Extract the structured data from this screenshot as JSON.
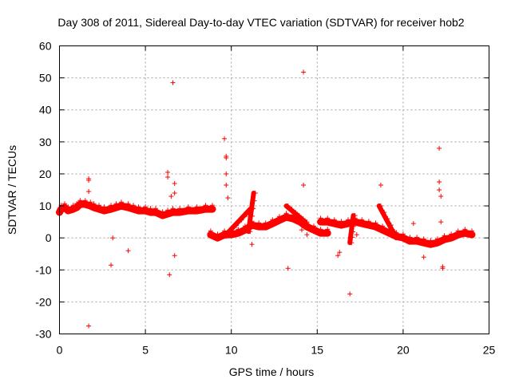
{
  "chart_data": {
    "type": "scatter",
    "title": "Day 308 of 2011, Sidereal Day-to-day VTEC variation (SDTVAR) for receiver hob2",
    "xlabel": "GPS time / hours",
    "ylabel": "SDTVAR / TECUs",
    "xlim": [
      0,
      25
    ],
    "ylim": [
      -30,
      60
    ],
    "xticks": [
      0,
      5,
      10,
      15,
      20,
      25
    ],
    "yticks": [
      -30,
      -20,
      -10,
      0,
      10,
      20,
      30,
      40,
      50,
      60
    ],
    "grid": true,
    "marker": "+",
    "color": "#ff0000",
    "dense_series": [
      {
        "name": "segment-1",
        "x": [
          0.0,
          0.1,
          0.3,
          0.5,
          0.8,
          1.0,
          1.2,
          1.5,
          1.8,
          2.0,
          2.3,
          2.6,
          3.0,
          3.3,
          3.6,
          4.0,
          4.3,
          4.6,
          5.0,
          5.3,
          5.6,
          6.0,
          6.3,
          6.6,
          7.0,
          7.5,
          8.0,
          8.5,
          8.9
        ],
        "y": [
          8,
          9,
          9.5,
          8.5,
          9,
          9.5,
          10.5,
          10.5,
          10,
          9.5,
          9,
          8.5,
          9,
          9.5,
          10,
          9.5,
          9,
          8.5,
          8.5,
          8,
          8,
          7,
          7.5,
          8,
          8,
          8.5,
          8.5,
          9,
          9
        ]
      },
      {
        "name": "segment-2",
        "x": [
          8.8,
          9.2,
          9.6,
          10.0,
          10.4,
          10.8,
          11.2,
          11.6,
          12.0,
          12.4,
          12.8,
          13.2,
          13.6,
          14.0,
          14.4,
          14.8,
          15.2,
          15.6
        ],
        "y": [
          1,
          0,
          1,
          1,
          1.5,
          2.5,
          4,
          3.5,
          3.5,
          4.5,
          5.5,
          6.5,
          6,
          5,
          3.5,
          2.5,
          1.5,
          1.5
        ]
      },
      {
        "name": "segment-3",
        "x": [
          15.2,
          15.6,
          16.0,
          16.4,
          16.8,
          17.2,
          17.6,
          18.0,
          18.4,
          18.8,
          19.2,
          19.6,
          20.0,
          20.4,
          20.8,
          21.2,
          21.6,
          22.0,
          22.4,
          22.8,
          23.2,
          23.6,
          24.0
        ],
        "y": [
          5,
          5,
          4.5,
          4,
          4.5,
          5,
          4.5,
          4,
          3.5,
          2.5,
          1.5,
          0.5,
          0,
          -1,
          -1,
          -1.5,
          -2,
          -1.5,
          -0.5,
          0,
          1,
          1.5,
          1
        ]
      }
    ],
    "rising_bands": [
      {
        "x": [
          9.6,
          11.1
        ],
        "y": [
          0.5,
          9
        ]
      },
      {
        "x": [
          11.0,
          11.3
        ],
        "y": [
          2,
          14
        ]
      },
      {
        "x": [
          13.2,
          14.3
        ],
        "y": [
          10,
          5
        ]
      },
      {
        "x": [
          18.6,
          19.6
        ],
        "y": [
          10,
          0
        ]
      },
      {
        "x": [
          16.9,
          17.1
        ],
        "y": [
          -1.5,
          7
        ]
      }
    ],
    "outliers": {
      "x": [
        1.7,
        1.7,
        1.7,
        1.7,
        3.0,
        3.1,
        4.0,
        6.3,
        6.3,
        6.4,
        6.6,
        6.7,
        6.7,
        6.7,
        6.5,
        9.6,
        9.7,
        9.7,
        9.7,
        9.8,
        9.7,
        11.2,
        13.3,
        14.2,
        14.2,
        14.1,
        14.4,
        16.2,
        16.3,
        16.9,
        17.3,
        18.7,
        20.6,
        21.2,
        22.1,
        22.1,
        22.1,
        22.2,
        22.3,
        22.3,
        22.2
      ],
      "y": [
        -27.5,
        18.5,
        18.0,
        14.5,
        -8.5,
        0.0,
        -4.0,
        20.5,
        19.0,
        -11.5,
        48.5,
        17.0,
        14.0,
        -5.5,
        13.0,
        31.0,
        25.0,
        20.0,
        16.5,
        12.5,
        25.5,
        -2.0,
        -9.5,
        51.8,
        16.5,
        2.5,
        1.0,
        -5.5,
        -4.5,
        -17.5,
        1.0,
        16.5,
        4.5,
        -6.0,
        28.0,
        17.5,
        15.0,
        13.0,
        -9.0,
        -9.5,
        5.0
      ]
    }
  }
}
